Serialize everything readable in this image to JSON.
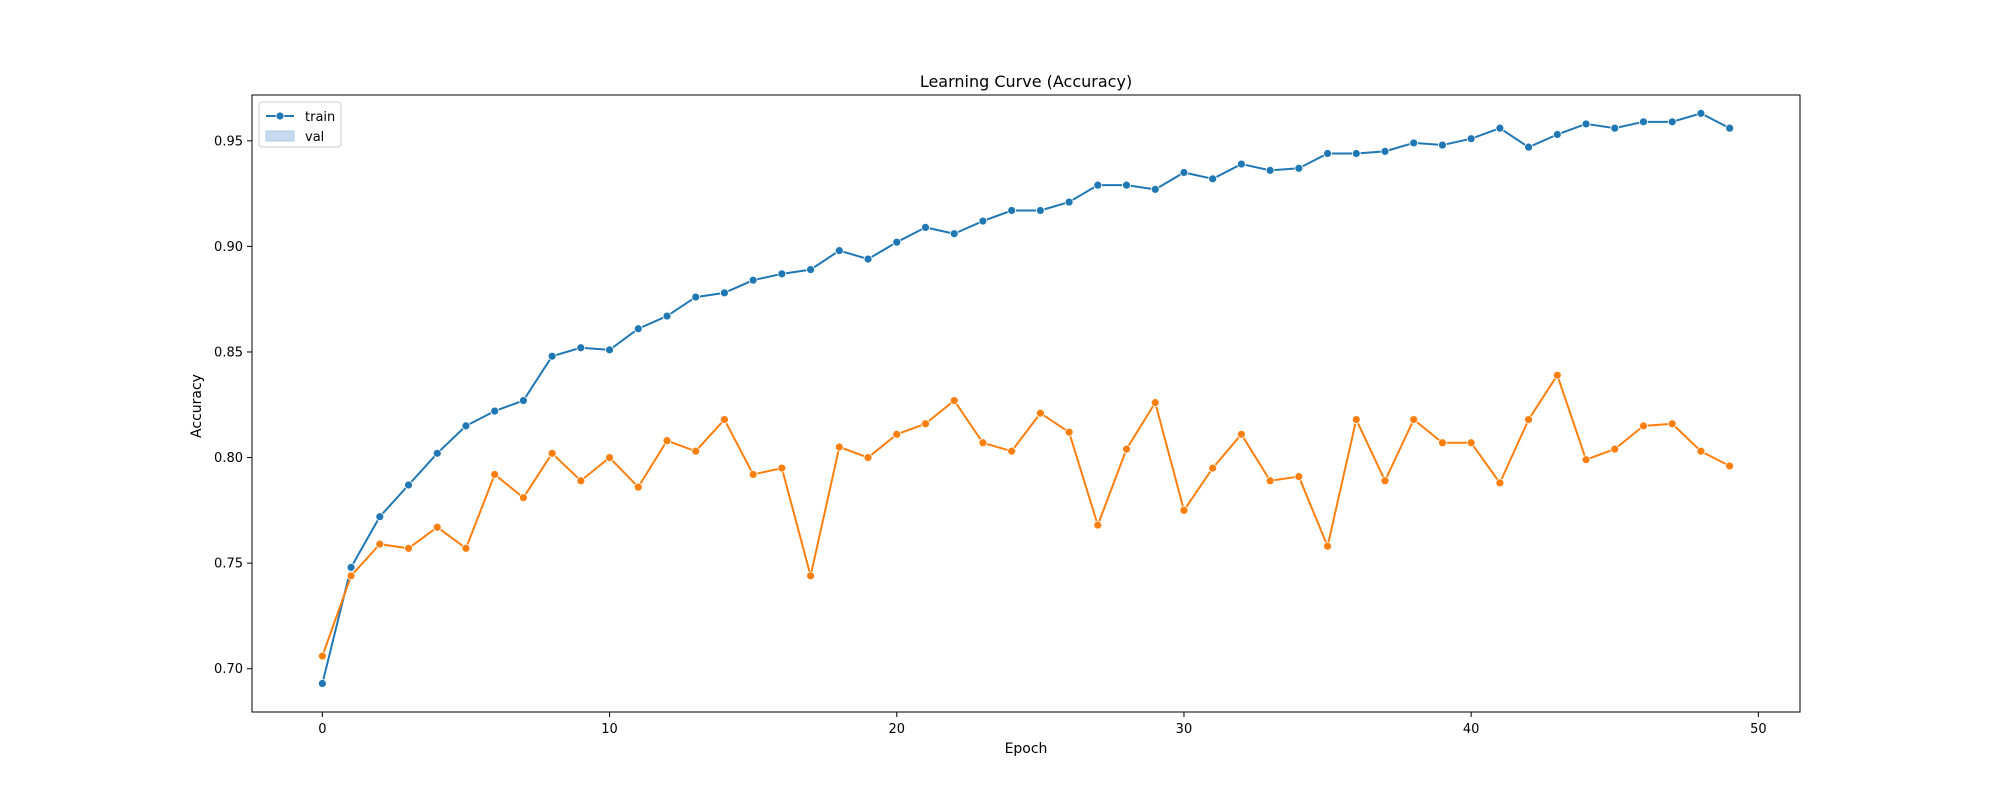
{
  "chart_data": {
    "type": "line",
    "title": "Learning Curve (Accuracy)",
    "xlabel": "Epoch",
    "ylabel": "Accuracy",
    "xlim": [
      -2.45,
      51.45
    ],
    "ylim": [
      0.6795,
      0.9717
    ],
    "xticks": [
      0,
      10,
      20,
      30,
      40,
      50
    ],
    "yticks": [
      0.7,
      0.75,
      0.8,
      0.85,
      0.9,
      0.95
    ],
    "ytick_labels": [
      "0.70",
      "0.75",
      "0.80",
      "0.85",
      "0.90",
      "0.95"
    ],
    "grid": false,
    "legend_position": "top-left",
    "x": [
      0,
      1,
      2,
      3,
      4,
      5,
      6,
      7,
      8,
      9,
      10,
      11,
      12,
      13,
      14,
      15,
      16,
      17,
      18,
      19,
      20,
      21,
      22,
      23,
      24,
      25,
      26,
      27,
      28,
      29,
      30,
      31,
      32,
      33,
      34,
      35,
      36,
      37,
      38,
      39,
      40,
      41,
      42,
      43,
      44,
      45,
      46,
      47,
      48,
      49
    ],
    "series": [
      {
        "name": "train",
        "color": "#1f77b4",
        "marker": "circle",
        "values": [
          0.693,
          0.748,
          0.772,
          0.787,
          0.802,
          0.815,
          0.822,
          0.827,
          0.848,
          0.852,
          0.851,
          0.861,
          0.867,
          0.876,
          0.878,
          0.884,
          0.887,
          0.889,
          0.898,
          0.894,
          0.902,
          0.909,
          0.906,
          0.912,
          0.917,
          0.917,
          0.921,
          0.929,
          0.929,
          0.927,
          0.935,
          0.932,
          0.939,
          0.936,
          0.937,
          0.944,
          0.944,
          0.945,
          0.949,
          0.948,
          0.951,
          0.956,
          0.947,
          0.953,
          0.958,
          0.956,
          0.959,
          0.959,
          0.963,
          0.956
        ]
      },
      {
        "name": "val",
        "color": "#ff7f0e",
        "marker": "circle",
        "values": [
          0.706,
          0.744,
          0.759,
          0.757,
          0.767,
          0.757,
          0.792,
          0.781,
          0.802,
          0.789,
          0.8,
          0.786,
          0.808,
          0.803,
          0.818,
          0.792,
          0.795,
          0.744,
          0.805,
          0.8,
          0.811,
          0.816,
          0.827,
          0.807,
          0.803,
          0.821,
          0.812,
          0.768,
          0.804,
          0.826,
          0.775,
          0.795,
          0.811,
          0.789,
          0.791,
          0.758,
          0.818,
          0.789,
          0.818,
          0.807,
          0.807,
          0.788,
          0.818,
          0.839,
          0.799,
          0.804,
          0.815,
          0.816,
          0.803,
          0.796
        ]
      }
    ],
    "legend": [
      {
        "label": "train",
        "swatch": "line-marker",
        "color": "#1f77b4"
      },
      {
        "label": "val",
        "swatch": "band",
        "color": "#c6dbef"
      }
    ]
  }
}
